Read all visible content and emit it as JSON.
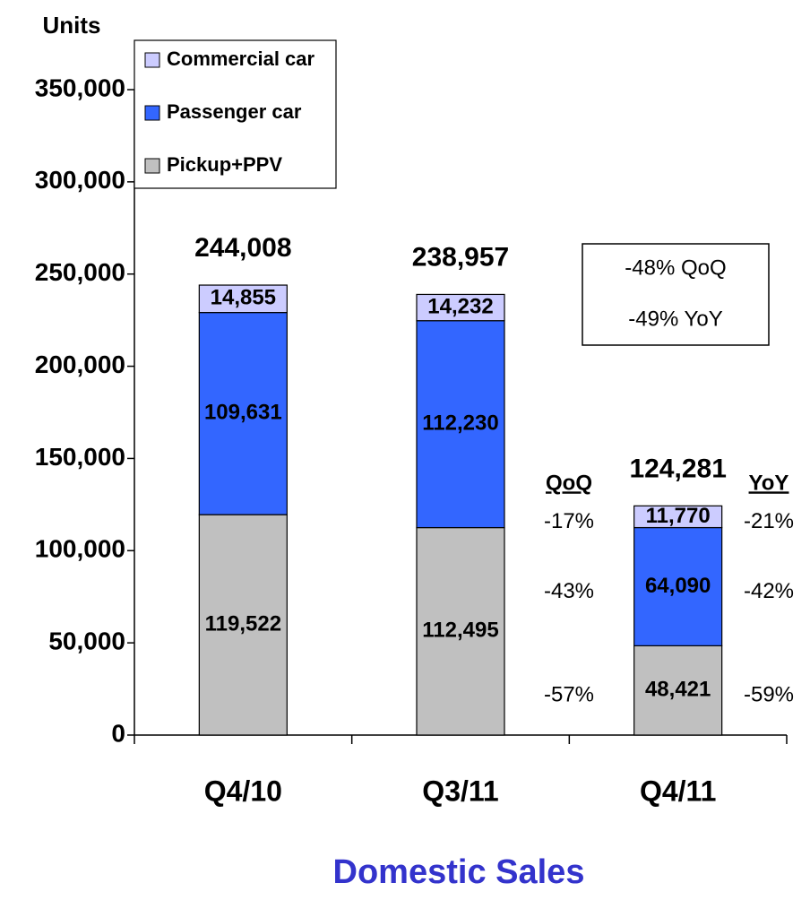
{
  "chart_data": {
    "type": "stacked_bar",
    "title": "Domestic Sales",
    "y_axis_label": "Units",
    "categories": [
      "Q4/10",
      "Q3/11",
      "Q4/11"
    ],
    "series": [
      {
        "name": "Pickup+PPV",
        "color": "#c0c0c0",
        "values": [
          119522,
          112495,
          48421
        ],
        "value_labels": [
          "119,522",
          "112,495",
          "48,421"
        ]
      },
      {
        "name": "Passenger car",
        "color": "#3366ff",
        "values": [
          109631,
          112230,
          64090
        ],
        "value_labels": [
          "109,631",
          "112,230",
          "64,090"
        ]
      },
      {
        "name": "Commercial car",
        "color": "#ccccff",
        "values": [
          14855,
          14232,
          11770
        ],
        "value_labels": [
          "14,855",
          "14,232",
          "11,770"
        ]
      }
    ],
    "totals": {
      "values": [
        244008,
        238957,
        124281
      ],
      "value_labels": [
        "244,008",
        "238,957",
        "124,281"
      ]
    },
    "ylim": [
      0,
      350000
    ],
    "yticks": [
      0,
      {
        "value": 50000,
        "label": "50,000"
      },
      {
        "value": 100000,
        "label": "100,000"
      },
      {
        "value": 150000,
        "label": "150,000"
      },
      {
        "value": 200000,
        "label": "200,000"
      },
      {
        "value": 250000,
        "label": "250,000"
      },
      {
        "value": 300000,
        "label": "300,000"
      },
      {
        "value": 350000,
        "label": "350,000"
      }
    ],
    "legend": "top-left",
    "summary_box": [
      "-48% QoQ",
      "-49% YoY"
    ],
    "qoq": {
      "header": "QoQ",
      "values": [
        "-57%",
        "-43%",
        "-17%"
      ]
    },
    "yoy": {
      "header": "YoY",
      "values": [
        "-59%",
        "-42%",
        "-21%"
      ]
    }
  }
}
